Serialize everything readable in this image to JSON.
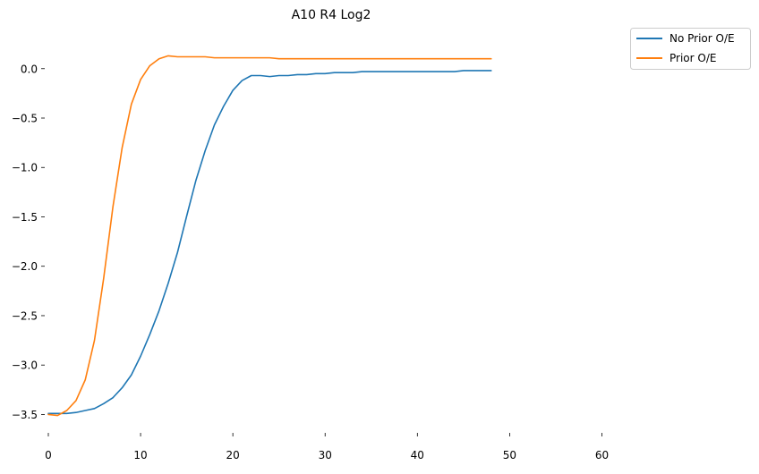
{
  "chart_data": {
    "type": "line",
    "title": "A10 R4 Log2",
    "xlabel": "",
    "ylabel": "",
    "xlim": [
      0,
      65
    ],
    "ylim": [
      -3.65,
      0.36
    ],
    "x_ticks": [
      0,
      10,
      20,
      30,
      40,
      50,
      60
    ],
    "y_ticks": [
      0.0,
      -0.5,
      -1.0,
      -1.5,
      -2.0,
      -2.5,
      -3.0,
      -3.5
    ],
    "x_tick_labels": [
      "0",
      "10",
      "20",
      "30",
      "40",
      "50",
      "60"
    ],
    "y_tick_labels": [
      "0.0",
      "−0.5",
      "−1.0",
      "−1.5",
      "−2.0",
      "−2.5",
      "−3.0",
      "−3.5"
    ],
    "grid": false,
    "legend_position": "top-right, outside",
    "x": [
      0,
      1,
      2,
      3,
      4,
      5,
      6,
      7,
      8,
      9,
      10,
      11,
      12,
      13,
      14,
      15,
      16,
      17,
      18,
      19,
      20,
      21,
      22,
      23,
      24,
      25,
      26,
      27,
      28,
      29,
      30,
      31,
      32,
      33,
      34,
      35,
      36,
      37,
      38,
      39,
      40,
      41,
      42,
      43,
      44,
      45,
      46,
      47,
      48
    ],
    "series": [
      {
        "name": "No Prior O/E",
        "color": "#1f77b4",
        "values": [
          -3.49,
          -3.49,
          -3.49,
          -3.48,
          -3.46,
          -3.44,
          -3.39,
          -3.33,
          -3.23,
          -3.1,
          -2.91,
          -2.69,
          -2.45,
          -2.17,
          -1.86,
          -1.49,
          -1.13,
          -0.83,
          -0.57,
          -0.38,
          -0.22,
          -0.12,
          -0.07,
          -0.07,
          -0.08,
          -0.07,
          -0.07,
          -0.06,
          -0.06,
          -0.05,
          -0.05,
          -0.04,
          -0.04,
          -0.04,
          -0.03,
          -0.03,
          -0.03,
          -0.03,
          -0.03,
          -0.03,
          -0.03,
          -0.03,
          -0.03,
          -0.03,
          -0.03,
          -0.02,
          -0.02,
          -0.02,
          -0.02
        ]
      },
      {
        "name": "Prior O/E",
        "color": "#ff7f0e",
        "values": [
          -3.5,
          -3.51,
          -3.46,
          -3.36,
          -3.15,
          -2.75,
          -2.12,
          -1.4,
          -0.8,
          -0.36,
          -0.11,
          0.03,
          0.1,
          0.13,
          0.12,
          0.12,
          0.12,
          0.12,
          0.11,
          0.11,
          0.11,
          0.11,
          0.11,
          0.11,
          0.11,
          0.1,
          0.1,
          0.1,
          0.1,
          0.1,
          0.1,
          0.1,
          0.1,
          0.1,
          0.1,
          0.1,
          0.1,
          0.1,
          0.1,
          0.1,
          0.1,
          0.1,
          0.1,
          0.1,
          0.1,
          0.1,
          0.1,
          0.1,
          0.1
        ]
      }
    ]
  }
}
